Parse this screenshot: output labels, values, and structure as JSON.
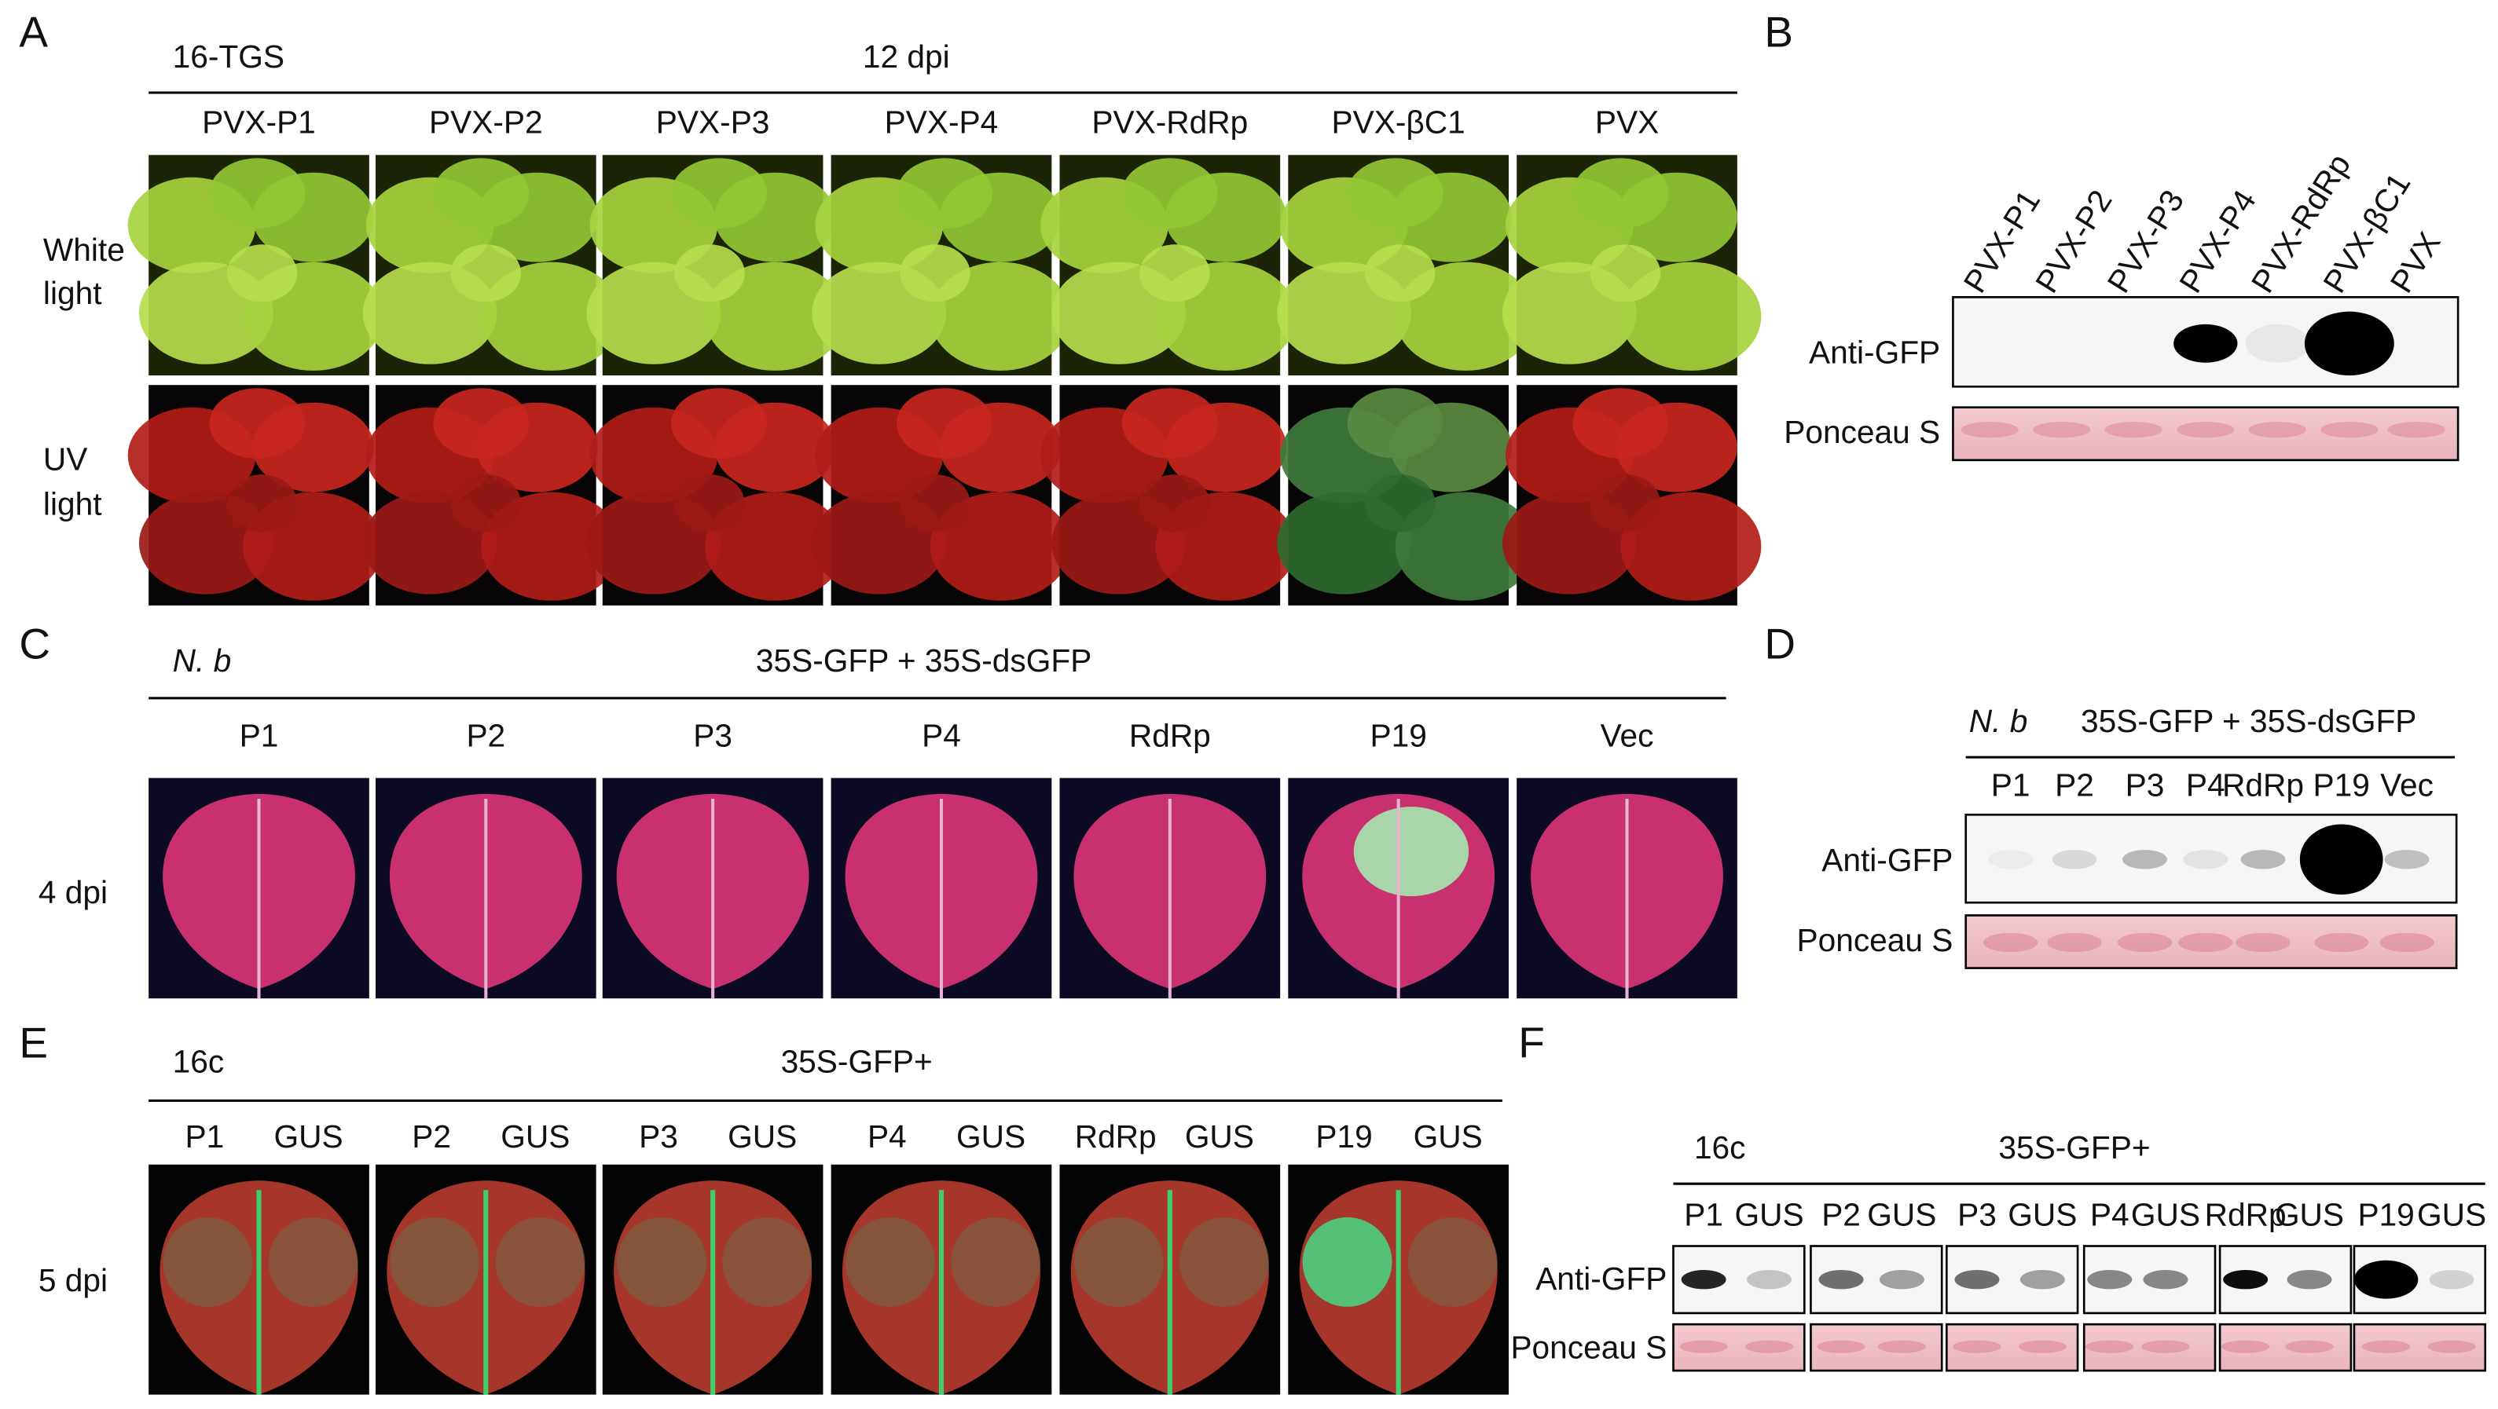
{
  "panels": {
    "A": {
      "label": "A",
      "line": "16-TGS",
      "condition": "12 dpi",
      "columns": [
        "PVX-P1",
        "PVX-P2",
        "PVX-P3",
        "PVX-P4",
        "PVX-RdRp",
        "PVX-βC1",
        "PVX"
      ],
      "row_labels": [
        [
          "White",
          "light"
        ],
        [
          "UV",
          "light"
        ]
      ]
    },
    "B": {
      "label": "B",
      "lanes": [
        "PVX-P1",
        "PVX-P2",
        "PVX-P3",
        "PVX-P4",
        "PVX-RdRp",
        "PVX-βC1",
        "PVX"
      ],
      "rows": [
        "Anti-GFP",
        "Ponceau S"
      ]
    },
    "C": {
      "label": "C",
      "host": "N. b",
      "condition": "35S-GFP + 35S-dsGFP",
      "columns": [
        "P1",
        "P2",
        "P3",
        "P4",
        "RdRp",
        "P19",
        "Vec"
      ],
      "row_label": "4 dpi"
    },
    "D": {
      "label": "D",
      "host": "N. b",
      "condition": "35S-GFP + 35S-dsGFP",
      "lanes": [
        "P1",
        "P2",
        "P3",
        "P4",
        "RdRp",
        "P19",
        "Vec"
      ],
      "rows": [
        "Anti-GFP",
        "Ponceau S"
      ]
    },
    "E": {
      "label": "E",
      "line": "16c",
      "condition": "35S-GFP+",
      "columns": [
        [
          "P1",
          "GUS"
        ],
        [
          "P2",
          "GUS"
        ],
        [
          "P3",
          "GUS"
        ],
        [
          "P4",
          "GUS"
        ],
        [
          "RdRp",
          "GUS"
        ],
        [
          "P19",
          "GUS"
        ]
      ],
      "row_label": "5 dpi"
    },
    "F": {
      "label": "F",
      "line": "16c",
      "condition": "35S-GFP+",
      "lanes": [
        [
          "P1",
          "GUS"
        ],
        [
          "P2",
          "GUS"
        ],
        [
          "P3",
          "GUS"
        ],
        [
          "P4",
          "GUS"
        ],
        [
          "RdRp",
          "GUS"
        ],
        [
          "P19",
          "GUS"
        ]
      ],
      "rows": [
        "Anti-GFP",
        "Ponceau S"
      ]
    }
  }
}
